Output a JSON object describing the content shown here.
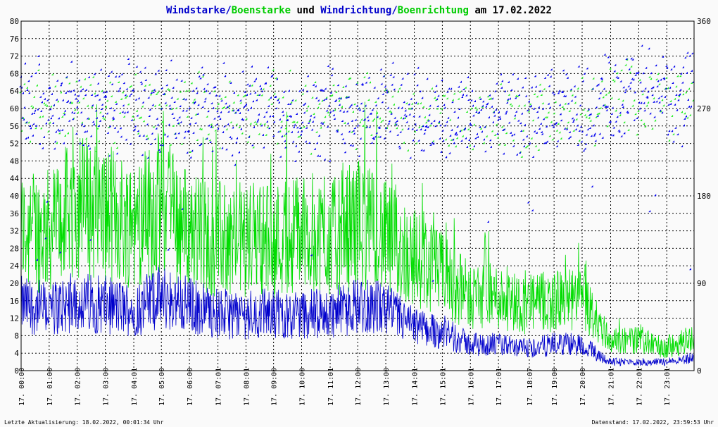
{
  "colors": {
    "windstaerke": "#0000cc",
    "boenstaerke": "#00dd00",
    "windrichtung": "#0000ee",
    "boenrichtung": "#22ee22",
    "grid": "#000000",
    "background": "#fafafa"
  },
  "title": {
    "part1": "Windstarke",
    "sep1": "/",
    "part2": "Boenstarke",
    "part3": " und ",
    "part4": "Windrichtung",
    "sep2": "/",
    "part5": "Boenrichtung",
    "part6": " am 17.02.2022"
  },
  "footer": {
    "left": "Letzte Aktualisierung: 18.02.2022, 00:01:34 Uhr",
    "right": "Datenstand: 17.02.2022, 23:59:53 Uhr"
  },
  "chart_data": {
    "type": "line",
    "title": "Windstarke/Boenstarke und Windrichtung/Boenrichtung am 17.02.2022",
    "ylim": [
      0,
      80
    ],
    "y2lim": [
      0,
      360
    ],
    "yticks": [
      0,
      4,
      8,
      12,
      16,
      20,
      24,
      28,
      32,
      36,
      40,
      44,
      48,
      52,
      56,
      60,
      64,
      68,
      72,
      76,
      80
    ],
    "y2ticks": [
      0,
      90,
      180,
      270,
      360
    ],
    "grid": true,
    "xlim_hours": [
      0,
      23.99
    ],
    "xticks": [
      {
        "h": 0.0,
        "label": "17. 00:00"
      },
      {
        "h": 1.0,
        "label": "17. 01:00"
      },
      {
        "h": 2.0,
        "label": "17. 02:00"
      },
      {
        "h": 3.0,
        "label": "17. 03:00"
      },
      {
        "h": 4.0167,
        "label": "17. 04:01"
      },
      {
        "h": 5.0,
        "label": "17. 05:00"
      },
      {
        "h": 6.0,
        "label": "17. 06:00"
      },
      {
        "h": 7.0167,
        "label": "17. 07:01"
      },
      {
        "h": 8.0167,
        "label": "17. 08:01"
      },
      {
        "h": 9.0,
        "label": "17. 09:00"
      },
      {
        "h": 10.0,
        "label": "17. 10:00"
      },
      {
        "h": 11.0167,
        "label": "17. 11:01"
      },
      {
        "h": 12.0,
        "label": "17. 12:00"
      },
      {
        "h": 13.0,
        "label": "17. 13:00"
      },
      {
        "h": 14.0167,
        "label": "17. 14:01"
      },
      {
        "h": 15.0167,
        "label": "17. 15:01"
      },
      {
        "h": 16.0167,
        "label": "17. 16:01"
      },
      {
        "h": 17.0167,
        "label": "17. 17:01"
      },
      {
        "h": 18.1167,
        "label": "17. 18:07"
      },
      {
        "h": 19.0,
        "label": "17. 19:00"
      },
      {
        "h": 20.0,
        "label": "17. 20:00"
      },
      {
        "h": 21.0167,
        "label": "17. 21:01"
      },
      {
        "h": 22.0167,
        "label": "17. 22:01"
      },
      {
        "h": 23.0167,
        "label": "17. 23:01"
      }
    ],
    "series": [
      {
        "name": "Windstarke",
        "kind": "line",
        "axis": "left",
        "hours": [
          0,
          1,
          2,
          3,
          4,
          5,
          6,
          7,
          8,
          9,
          10,
          11,
          12,
          13,
          14,
          15,
          16,
          17,
          18,
          19,
          20,
          21,
          22,
          23,
          24
        ],
        "values": [
          15,
          14,
          16,
          15,
          14,
          17,
          15,
          13,
          13,
          13,
          13,
          13,
          15,
          14,
          10,
          9,
          6,
          6,
          5,
          6,
          6,
          2,
          2,
          2,
          3
        ]
      },
      {
        "name": "Boenstarke",
        "kind": "line",
        "axis": "left",
        "hours": [
          0,
          1,
          2,
          3,
          4,
          5,
          6,
          7,
          8,
          9,
          10,
          11,
          12,
          13,
          14,
          15,
          16,
          17,
          18,
          19,
          20,
          21,
          22,
          23,
          24
        ],
        "values": [
          32,
          32,
          38,
          36,
          34,
          38,
          32,
          30,
          30,
          30,
          32,
          30,
          34,
          30,
          26,
          22,
          17,
          17,
          15,
          16,
          16,
          7,
          7,
          5,
          8
        ]
      },
      {
        "name": "Windrichtung",
        "kind": "points",
        "axis": "right",
        "hours": [
          0,
          1,
          2,
          3,
          4,
          5,
          6,
          7,
          8,
          9,
          10,
          11,
          12,
          13,
          14,
          15,
          16,
          17,
          18,
          19,
          20,
          21,
          22,
          23,
          24
        ],
        "values": [
          272,
          275,
          272,
          265,
          270,
          270,
          268,
          265,
          265,
          268,
          265,
          265,
          268,
          268,
          262,
          262,
          260,
          260,
          258,
          262,
          265,
          278,
          288,
          282,
          272
        ]
      },
      {
        "name": "Boenrichtung",
        "kind": "points",
        "axis": "right",
        "hours": [
          0,
          1,
          2,
          3,
          4,
          5,
          6,
          7,
          8,
          9,
          10,
          11,
          12,
          13,
          14,
          15,
          16,
          17,
          18,
          19,
          20,
          21,
          22,
          23,
          24
        ],
        "values": [
          270,
          272,
          270,
          265,
          268,
          265,
          268,
          265,
          265,
          268,
          265,
          265,
          268,
          268,
          262,
          262,
          260,
          260,
          258,
          262,
          265,
          275,
          285,
          280,
          272
        ]
      }
    ]
  }
}
